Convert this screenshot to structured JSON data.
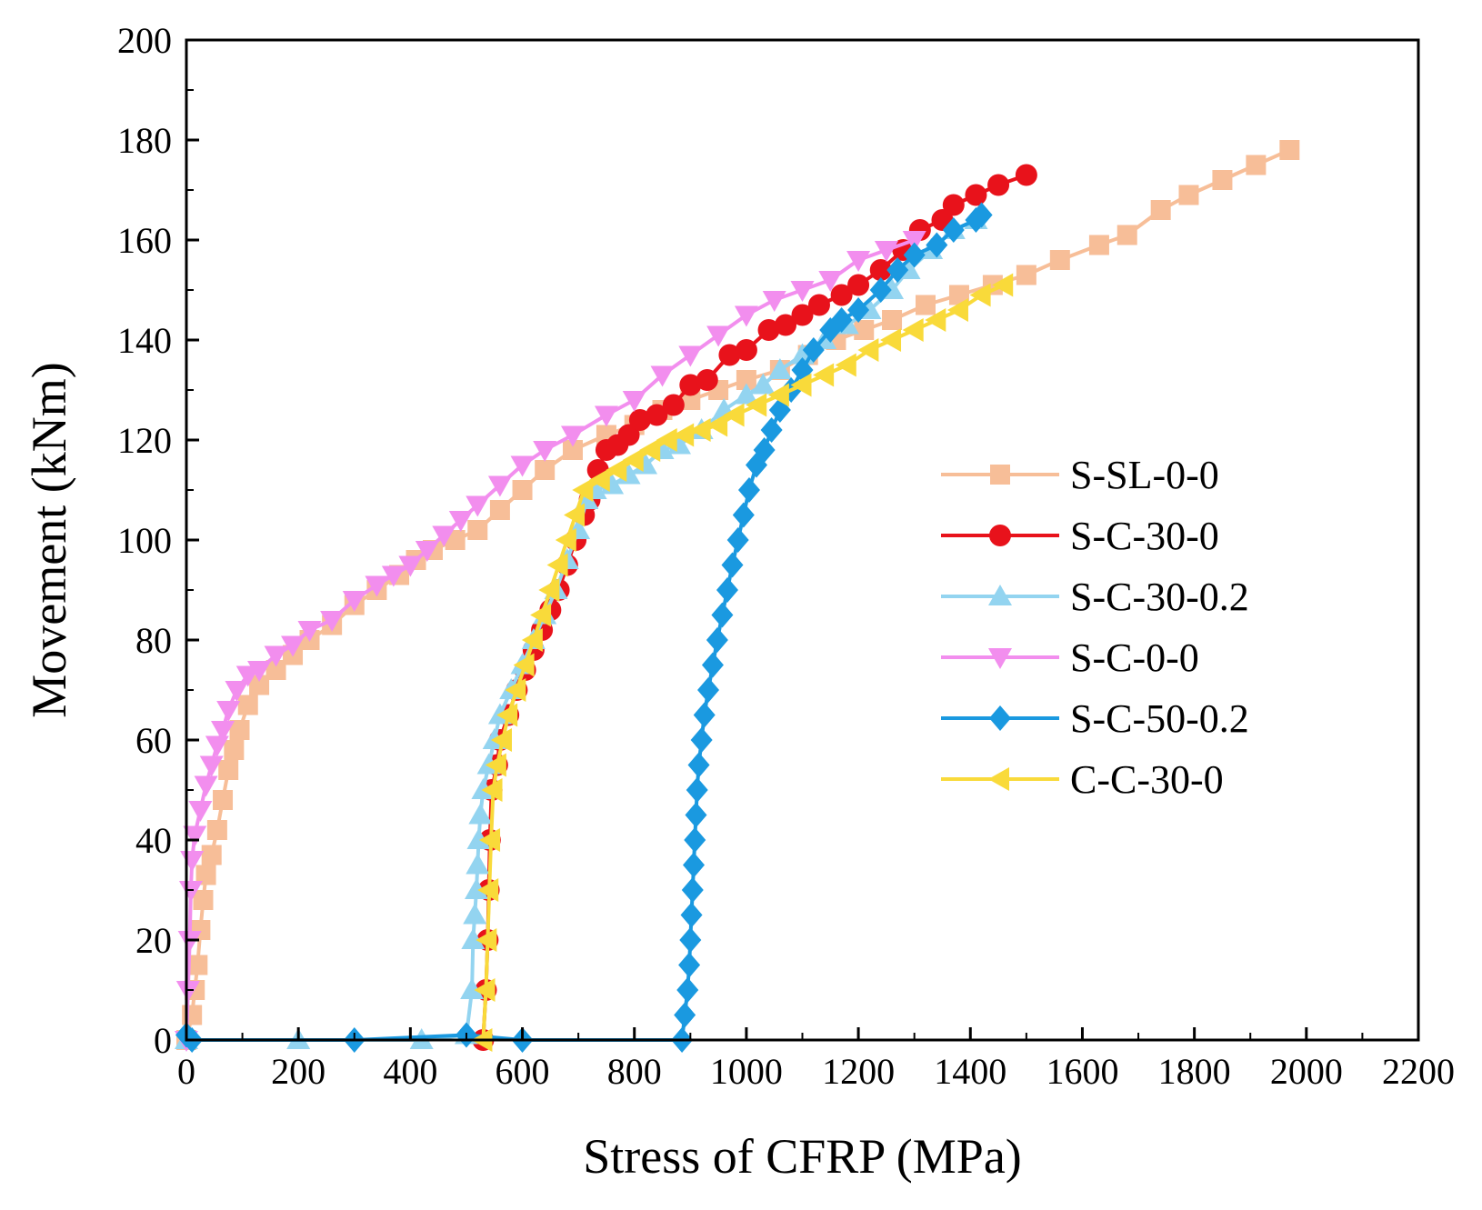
{
  "chart_data": {
    "type": "line",
    "title": "",
    "xlabel": "Stress of CFRP (MPa)",
    "ylabel": "Movement (kNm)",
    "xlim": [
      0,
      2200
    ],
    "ylim": [
      0,
      200
    ],
    "xticks": [
      "0",
      "200",
      "400",
      "600",
      "800",
      "1000",
      "1200",
      "1400",
      "1600",
      "1800",
      "2000",
      "2200"
    ],
    "yticks": [
      "0",
      "20",
      "40",
      "60",
      "80",
      "100",
      "120",
      "140",
      "160",
      "180",
      "200"
    ],
    "grid": false,
    "legend_position": "right",
    "series": [
      {
        "name": "S-SL-0-0",
        "color": "#F7BE98",
        "marker": "square",
        "points": [
          [
            0,
            0
          ],
          [
            10,
            5
          ],
          [
            15,
            10
          ],
          [
            20,
            15
          ],
          [
            25,
            22
          ],
          [
            30,
            28
          ],
          [
            35,
            33
          ],
          [
            45,
            37
          ],
          [
            55,
            42
          ],
          [
            65,
            48
          ],
          [
            75,
            54
          ],
          [
            85,
            58
          ],
          [
            95,
            62
          ],
          [
            110,
            67
          ],
          [
            130,
            71
          ],
          [
            160,
            74
          ],
          [
            190,
            77
          ],
          [
            220,
            80
          ],
          [
            260,
            83
          ],
          [
            300,
            87
          ],
          [
            340,
            90
          ],
          [
            380,
            93
          ],
          [
            410,
            96
          ],
          [
            440,
            98
          ],
          [
            480,
            100
          ],
          [
            520,
            102
          ],
          [
            560,
            106
          ],
          [
            600,
            110
          ],
          [
            640,
            114
          ],
          [
            690,
            118
          ],
          [
            750,
            121
          ],
          [
            800,
            123
          ],
          [
            850,
            126
          ],
          [
            900,
            128
          ],
          [
            950,
            130
          ],
          [
            1000,
            132
          ],
          [
            1060,
            134
          ],
          [
            1110,
            137
          ],
          [
            1160,
            140
          ],
          [
            1210,
            142
          ],
          [
            1260,
            144
          ],
          [
            1320,
            147
          ],
          [
            1380,
            149
          ],
          [
            1440,
            151
          ],
          [
            1500,
            153
          ],
          [
            1560,
            156
          ],
          [
            1630,
            159
          ],
          [
            1680,
            161
          ],
          [
            1740,
            166
          ],
          [
            1790,
            169
          ],
          [
            1850,
            172
          ],
          [
            1910,
            175
          ],
          [
            1970,
            178
          ]
        ]
      },
      {
        "name": "S-C-30-0",
        "color": "#E8121B",
        "marker": "circle",
        "points": [
          [
            530,
            0
          ],
          [
            535,
            10
          ],
          [
            538,
            20
          ],
          [
            540,
            30
          ],
          [
            542,
            40
          ],
          [
            545,
            50
          ],
          [
            555,
            55
          ],
          [
            560,
            60
          ],
          [
            575,
            65
          ],
          [
            590,
            70
          ],
          [
            605,
            74
          ],
          [
            620,
            78
          ],
          [
            635,
            82
          ],
          [
            650,
            86
          ],
          [
            665,
            90
          ],
          [
            680,
            95
          ],
          [
            695,
            100
          ],
          [
            710,
            105
          ],
          [
            720,
            108
          ],
          [
            735,
            114
          ],
          [
            750,
            118
          ],
          [
            770,
            119
          ],
          [
            790,
            121
          ],
          [
            810,
            124
          ],
          [
            840,
            125
          ],
          [
            870,
            127
          ],
          [
            900,
            131
          ],
          [
            930,
            132
          ],
          [
            970,
            137
          ],
          [
            1000,
            138
          ],
          [
            1040,
            142
          ],
          [
            1070,
            143
          ],
          [
            1100,
            145
          ],
          [
            1130,
            147
          ],
          [
            1170,
            149
          ],
          [
            1200,
            151
          ],
          [
            1240,
            154
          ],
          [
            1280,
            158
          ],
          [
            1310,
            162
          ],
          [
            1350,
            164
          ],
          [
            1370,
            167
          ],
          [
            1410,
            169
          ],
          [
            1450,
            171
          ],
          [
            1500,
            173
          ]
        ]
      },
      {
        "name": "S-C-30-0.2",
        "color": "#93D4F0",
        "marker": "triangle-up",
        "points": [
          [
            0,
            0
          ],
          [
            200,
            0
          ],
          [
            420,
            0
          ],
          [
            500,
            1
          ],
          [
            510,
            10
          ],
          [
            512,
            20
          ],
          [
            515,
            25
          ],
          [
            518,
            30
          ],
          [
            520,
            35
          ],
          [
            522,
            40
          ],
          [
            525,
            45
          ],
          [
            530,
            50
          ],
          [
            540,
            55
          ],
          [
            550,
            60
          ],
          [
            560,
            65
          ],
          [
            580,
            70
          ],
          [
            600,
            75
          ],
          [
            620,
            80
          ],
          [
            640,
            85
          ],
          [
            660,
            90
          ],
          [
            680,
            96
          ],
          [
            700,
            102
          ],
          [
            715,
            108
          ],
          [
            730,
            110
          ],
          [
            760,
            111
          ],
          [
            790,
            113
          ],
          [
            820,
            115
          ],
          [
            850,
            118
          ],
          [
            880,
            119
          ],
          [
            920,
            122
          ],
          [
            960,
            126
          ],
          [
            1000,
            129
          ],
          [
            1030,
            131
          ],
          [
            1060,
            134
          ],
          [
            1100,
            137
          ],
          [
            1140,
            140
          ],
          [
            1180,
            143
          ],
          [
            1220,
            146
          ],
          [
            1260,
            150
          ],
          [
            1290,
            154
          ],
          [
            1330,
            158
          ],
          [
            1370,
            162
          ],
          [
            1410,
            164
          ]
        ]
      },
      {
        "name": "S-C-0-0",
        "color": "#F28EEE",
        "marker": "triangle-down",
        "points": [
          [
            0,
            0
          ],
          [
            3,
            10
          ],
          [
            6,
            20
          ],
          [
            8,
            30
          ],
          [
            10,
            36
          ],
          [
            15,
            41
          ],
          [
            25,
            46
          ],
          [
            35,
            51
          ],
          [
            45,
            55
          ],
          [
            55,
            59
          ],
          [
            65,
            62
          ],
          [
            75,
            66
          ],
          [
            90,
            70
          ],
          [
            110,
            73
          ],
          [
            130,
            74
          ],
          [
            160,
            77
          ],
          [
            190,
            79
          ],
          [
            220,
            82
          ],
          [
            260,
            84
          ],
          [
            300,
            88
          ],
          [
            340,
            91
          ],
          [
            370,
            93
          ],
          [
            400,
            95
          ],
          [
            430,
            98
          ],
          [
            460,
            101
          ],
          [
            490,
            104
          ],
          [
            520,
            107
          ],
          [
            560,
            111
          ],
          [
            600,
            115
          ],
          [
            640,
            118
          ],
          [
            690,
            121
          ],
          [
            750,
            125
          ],
          [
            800,
            128
          ],
          [
            850,
            133
          ],
          [
            900,
            137
          ],
          [
            950,
            141
          ],
          [
            1000,
            145
          ],
          [
            1050,
            148
          ],
          [
            1100,
            150
          ],
          [
            1150,
            152
          ],
          [
            1200,
            156
          ],
          [
            1250,
            158
          ],
          [
            1300,
            160
          ]
        ]
      },
      {
        "name": "S-C-50-0.2",
        "color": "#1A99E0",
        "marker": "diamond",
        "points": [
          [
            0,
            1
          ],
          [
            10,
            0
          ],
          [
            300,
            0
          ],
          [
            500,
            1
          ],
          [
            600,
            0
          ],
          [
            885,
            0
          ],
          [
            890,
            5
          ],
          [
            895,
            10
          ],
          [
            898,
            15
          ],
          [
            900,
            20
          ],
          [
            902,
            25
          ],
          [
            904,
            30
          ],
          [
            906,
            35
          ],
          [
            908,
            40
          ],
          [
            910,
            45
          ],
          [
            912,
            50
          ],
          [
            915,
            55
          ],
          [
            920,
            60
          ],
          [
            925,
            65
          ],
          [
            932,
            70
          ],
          [
            940,
            75
          ],
          [
            948,
            80
          ],
          [
            957,
            85
          ],
          [
            966,
            90
          ],
          [
            975,
            95
          ],
          [
            985,
            100
          ],
          [
            995,
            105
          ],
          [
            1005,
            110
          ],
          [
            1018,
            115
          ],
          [
            1032,
            118
          ],
          [
            1045,
            122
          ],
          [
            1060,
            126
          ],
          [
            1080,
            130
          ],
          [
            1100,
            134
          ],
          [
            1120,
            138
          ],
          [
            1150,
            142
          ],
          [
            1170,
            144
          ],
          [
            1200,
            146
          ],
          [
            1240,
            150
          ],
          [
            1270,
            154
          ],
          [
            1300,
            157
          ],
          [
            1340,
            159
          ],
          [
            1370,
            162
          ],
          [
            1410,
            164
          ],
          [
            1420,
            165
          ]
        ]
      },
      {
        "name": "C-C-30-0",
        "color": "#F9DA3A",
        "marker": "triangle-left",
        "points": [
          [
            530,
            0
          ],
          [
            535,
            10
          ],
          [
            538,
            20
          ],
          [
            541,
            30
          ],
          [
            544,
            40
          ],
          [
            548,
            50
          ],
          [
            555,
            55
          ],
          [
            565,
            60
          ],
          [
            575,
            65
          ],
          [
            590,
            70
          ],
          [
            605,
            75
          ],
          [
            620,
            80
          ],
          [
            635,
            85
          ],
          [
            650,
            90
          ],
          [
            665,
            95
          ],
          [
            680,
            100
          ],
          [
            695,
            105
          ],
          [
            710,
            110
          ],
          [
            740,
            112
          ],
          [
            770,
            114
          ],
          [
            800,
            116
          ],
          [
            830,
            118
          ],
          [
            860,
            120
          ],
          [
            890,
            121
          ],
          [
            920,
            122
          ],
          [
            950,
            123
          ],
          [
            980,
            125
          ],
          [
            1020,
            127
          ],
          [
            1060,
            129
          ],
          [
            1100,
            131
          ],
          [
            1140,
            133
          ],
          [
            1180,
            135
          ],
          [
            1220,
            138
          ],
          [
            1260,
            140
          ],
          [
            1300,
            142
          ],
          [
            1340,
            144
          ],
          [
            1380,
            146
          ],
          [
            1420,
            149
          ],
          [
            1460,
            151
          ]
        ]
      }
    ]
  }
}
